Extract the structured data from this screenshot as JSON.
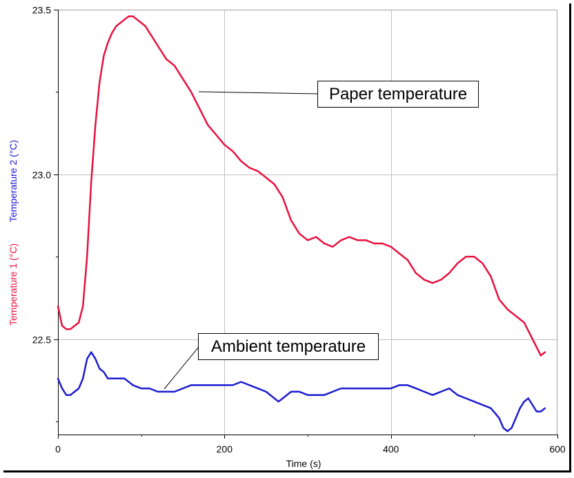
{
  "chart_data": {
    "type": "line",
    "xlabel": "Time (s)",
    "ylabels": [
      {
        "text": "Temperature 1 (°C)",
        "color": "#e8103c"
      },
      {
        "text": "Temperature 2 (°C)",
        "color": "#1a1ad0"
      }
    ],
    "xlim": [
      0,
      600
    ],
    "ylim": [
      22.21,
      23.5
    ],
    "x_ticks": [
      0,
      200,
      400,
      600
    ],
    "y_ticks": [
      "22.5",
      "23.0",
      "23.5"
    ],
    "y_tick_values": [
      22.5,
      23.0,
      23.5
    ],
    "grid": true,
    "series": [
      {
        "color": "#e8103c",
        "x": [
          0,
          5,
          10,
          15,
          20,
          25,
          30,
          35,
          40,
          45,
          50,
          55,
          60,
          65,
          70,
          75,
          80,
          85,
          90,
          95,
          100,
          105,
          110,
          115,
          120,
          130,
          140,
          150,
          160,
          170,
          180,
          190,
          200,
          210,
          220,
          230,
          240,
          250,
          260,
          270,
          280,
          290,
          300,
          310,
          320,
          330,
          340,
          350,
          360,
          370,
          380,
          390,
          400,
          410,
          420,
          430,
          440,
          450,
          460,
          470,
          480,
          490,
          500,
          510,
          520,
          530,
          540,
          550,
          560,
          570,
          580,
          585
        ],
        "values": [
          22.6,
          22.54,
          22.53,
          22.53,
          22.54,
          22.55,
          22.6,
          22.75,
          22.98,
          23.15,
          23.28,
          23.36,
          23.4,
          23.43,
          23.45,
          23.46,
          23.47,
          23.48,
          23.48,
          23.47,
          23.46,
          23.45,
          23.43,
          23.41,
          23.39,
          23.35,
          23.33,
          23.29,
          23.25,
          23.2,
          23.15,
          23.12,
          23.09,
          23.07,
          23.04,
          23.02,
          23.01,
          22.99,
          22.97,
          22.93,
          22.86,
          22.82,
          22.8,
          22.81,
          22.79,
          22.78,
          22.8,
          22.81,
          22.8,
          22.8,
          22.79,
          22.79,
          22.78,
          22.76,
          22.74,
          22.7,
          22.68,
          22.67,
          22.68,
          22.7,
          22.73,
          22.75,
          22.75,
          22.73,
          22.69,
          22.62,
          22.59,
          22.57,
          22.55,
          22.5,
          22.45,
          22.46
        ]
      },
      {
        "color": "#1a1ad0",
        "x": [
          0,
          5,
          10,
          15,
          20,
          25,
          30,
          35,
          40,
          45,
          50,
          55,
          60,
          70,
          80,
          90,
          100,
          110,
          120,
          130,
          140,
          150,
          160,
          170,
          180,
          190,
          200,
          210,
          220,
          230,
          240,
          250,
          260,
          265,
          270,
          280,
          290,
          300,
          310,
          320,
          330,
          340,
          350,
          360,
          370,
          380,
          390,
          400,
          410,
          420,
          430,
          440,
          450,
          460,
          470,
          480,
          490,
          500,
          510,
          520,
          530,
          535,
          540,
          545,
          550,
          555,
          560,
          565,
          570,
          575,
          580,
          585
        ],
        "values": [
          22.38,
          22.35,
          22.33,
          22.33,
          22.34,
          22.35,
          22.38,
          22.44,
          22.46,
          22.44,
          22.41,
          22.4,
          22.38,
          22.38,
          22.38,
          22.36,
          22.35,
          22.35,
          22.34,
          22.34,
          22.34,
          22.35,
          22.36,
          22.36,
          22.36,
          22.36,
          22.36,
          22.36,
          22.37,
          22.36,
          22.35,
          22.34,
          22.32,
          22.31,
          22.32,
          22.34,
          22.34,
          22.33,
          22.33,
          22.33,
          22.34,
          22.35,
          22.35,
          22.35,
          22.35,
          22.35,
          22.35,
          22.35,
          22.36,
          22.36,
          22.35,
          22.34,
          22.33,
          22.34,
          22.35,
          22.33,
          22.32,
          22.31,
          22.3,
          22.29,
          22.26,
          22.23,
          22.22,
          22.23,
          22.26,
          22.29,
          22.31,
          22.32,
          22.3,
          22.28,
          22.28,
          22.29
        ]
      }
    ],
    "annotations": [
      {
        "text": "Paper temperature",
        "x": 170,
        "y": 23.25
      },
      {
        "text": "Ambient temperature",
        "x": 128,
        "y": 22.34
      }
    ]
  }
}
